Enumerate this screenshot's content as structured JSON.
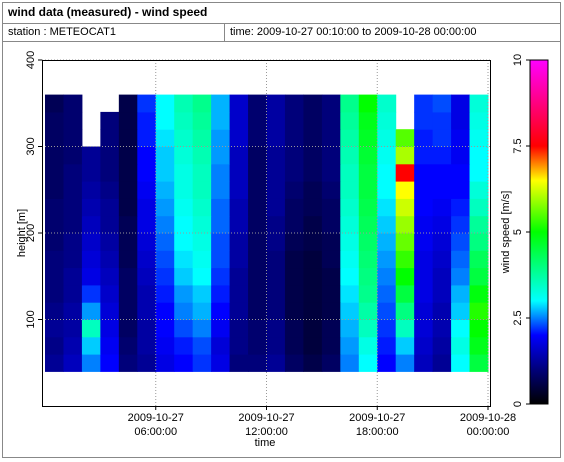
{
  "chart_data": {
    "type": "heatmap",
    "title": "wind data (measured) - wind speed",
    "station": "station : METEOCAT1",
    "period": "time: 2009-10-27 00:10:00 to 2009-10-28 00:00:00",
    "x_label": "time",
    "y_label": "height [m]",
    "colorbar_label": "wind speed [m/s]",
    "xlim": [
      "2009-10-27 00:00:00",
      "2009-10-28 00:00:00"
    ],
    "xticks": [
      "2009-10-27 06:00:00",
      "2009-10-27 12:00:00",
      "2009-10-27 18:00:00",
      "2009-10-28 00:00:00"
    ],
    "ylim": [
      0,
      400
    ],
    "yticks": [
      100,
      200,
      300,
      400
    ],
    "zlim": [
      0,
      10
    ],
    "zticks": [
      0,
      2.5,
      5,
      7.5,
      10
    ],
    "grid": true,
    "colormap": [
      {
        "value": 0,
        "color": "#000000"
      },
      {
        "value": 1,
        "color": "#00007a"
      },
      {
        "value": 2,
        "color": "#0000ff"
      },
      {
        "value": 3,
        "color": "#00ffff"
      },
      {
        "value": 5,
        "color": "#00ff00"
      },
      {
        "value": 6.5,
        "color": "#ffff00"
      },
      {
        "value": 7.5,
        "color": "#ff0000"
      },
      {
        "value": 10,
        "color": "#ff00ff"
      }
    ],
    "xbins": [
      "2009-10-27 00:00:00",
      "2009-10-27 01:00:00",
      "2009-10-27 02:00:00",
      "2009-10-27 03:00:00",
      "2009-10-27 04:00:00",
      "2009-10-27 05:00:00",
      "2009-10-27 06:00:00",
      "2009-10-27 07:00:00",
      "2009-10-27 08:00:00",
      "2009-10-27 09:00:00",
      "2009-10-27 10:00:00",
      "2009-10-27 11:00:00",
      "2009-10-27 12:00:00",
      "2009-10-27 13:00:00",
      "2009-10-27 14:00:00",
      "2009-10-27 15:00:00",
      "2009-10-27 16:00:00",
      "2009-10-27 17:00:00",
      "2009-10-27 18:00:00",
      "2009-10-27 19:00:00",
      "2009-10-27 20:00:00",
      "2009-10-27 21:00:00",
      "2009-10-27 22:00:00",
      "2009-10-27 23:00:00",
      "2009-10-28 00:00:00"
    ],
    "ybins": [
      40,
      60,
      80,
      100,
      120,
      140,
      160,
      180,
      200,
      220,
      240,
      260,
      280,
      300,
      320,
      340,
      360
    ],
    "values": [
      [
        1.2,
        1.5,
        2.5,
        2.0,
        1.0,
        1.2,
        1.8,
        2.0,
        2.2,
        1.8,
        1.0,
        1.0,
        1.2,
        0.8,
        0.6,
        0.8,
        2.5,
        3.0,
        2.0,
        2.5,
        1.5,
        1.2,
        3.0,
        4.5
      ],
      [
        1.1,
        1.4,
        2.8,
        1.9,
        0.9,
        1.3,
        1.9,
        2.1,
        2.3,
        1.7,
        1.1,
        0.9,
        1.1,
        0.7,
        0.5,
        0.7,
        2.6,
        3.2,
        2.1,
        2.8,
        1.6,
        1.3,
        3.2,
        4.8
      ],
      [
        1.2,
        1.3,
        3.5,
        1.8,
        0.8,
        1.3,
        2.0,
        2.3,
        2.5,
        1.9,
        1.1,
        0.9,
        1.1,
        0.7,
        0.5,
        0.7,
        2.7,
        3.5,
        2.2,
        3.5,
        1.7,
        1.4,
        3.0,
        5.0
      ],
      [
        1.1,
        1.3,
        2.6,
        1.7,
        0.8,
        1.4,
        2.0,
        2.5,
        2.7,
        2.0,
        1.2,
        0.8,
        1.0,
        0.6,
        0.5,
        0.6,
        2.8,
        3.7,
        2.3,
        4.0,
        1.7,
        1.4,
        2.8,
        5.2
      ],
      [
        1.0,
        1.2,
        2.2,
        1.6,
        0.8,
        1.4,
        2.1,
        2.6,
        2.8,
        2.1,
        1.2,
        0.8,
        1.0,
        0.6,
        0.5,
        0.6,
        2.9,
        3.9,
        2.4,
        4.5,
        1.8,
        1.5,
        2.7,
        4.9
      ],
      [
        1.0,
        1.2,
        1.8,
        1.5,
        0.8,
        1.5,
        2.2,
        2.8,
        3.0,
        2.2,
        1.2,
        0.8,
        1.0,
        0.6,
        0.5,
        0.6,
        3.0,
        4.0,
        2.5,
        5.0,
        1.8,
        1.5,
        2.5,
        4.5
      ],
      [
        1.0,
        1.1,
        1.7,
        1.4,
        0.7,
        1.6,
        2.3,
        2.9,
        3.1,
        2.3,
        1.3,
        0.8,
        1.0,
        0.6,
        0.5,
        0.7,
        3.1,
        4.1,
        2.6,
        5.3,
        1.8,
        1.6,
        2.4,
        4.3
      ],
      [
        0.9,
        1.1,
        1.6,
        1.3,
        0.7,
        1.7,
        2.4,
        3.0,
        3.2,
        2.3,
        1.3,
        0.8,
        1.1,
        0.7,
        0.6,
        0.7,
        3.2,
        4.2,
        2.7,
        5.6,
        1.9,
        1.7,
        2.3,
        4.0
      ],
      [
        0.9,
        1.0,
        1.5,
        1.2,
        0.7,
        1.8,
        2.5,
        3.0,
        3.3,
        2.4,
        1.4,
        0.8,
        1.1,
        0.8,
        0.6,
        0.8,
        3.3,
        4.3,
        2.8,
        5.9,
        1.9,
        1.8,
        2.2,
        3.8
      ],
      [
        0.9,
        1.0,
        1.4,
        1.2,
        0.6,
        1.8,
        2.6,
        3.1,
        3.4,
        2.4,
        1.4,
        0.8,
        1.2,
        0.8,
        0.7,
        0.8,
        3.4,
        4.4,
        2.9,
        6.2,
        2.0,
        1.9,
        2.1,
        3.5
      ],
      [
        0.8,
        1.0,
        1.3,
        1.1,
        0.6,
        1.9,
        2.7,
        3.2,
        3.5,
        2.5,
        1.5,
        0.8,
        1.2,
        0.9,
        0.7,
        0.9,
        3.5,
        4.5,
        3.0,
        6.5,
        2.0,
        2.0,
        2.0,
        3.3
      ],
      [
        0.8,
        1.0,
        1.2,
        1.0,
        0.6,
        2.0,
        2.8,
        3.2,
        3.5,
        2.5,
        1.5,
        0.8,
        1.2,
        1.0,
        0.8,
        1.0,
        3.5,
        4.5,
        3.0,
        7.5,
        2.0,
        2.0,
        2.0,
        3.0
      ],
      [
        0.8,
        0.9,
        1.2,
        1.0,
        0.6,
        2.0,
        2.8,
        3.3,
        3.6,
        2.6,
        1.5,
        0.8,
        1.2,
        1.0,
        0.8,
        1.0,
        3.6,
        4.6,
        3.1,
        6.0,
        2.1,
        2.1,
        1.9,
        3.0
      ],
      [
        0.8,
        0.9,
        null,
        1.0,
        0.6,
        2.1,
        2.9,
        3.4,
        3.7,
        2.6,
        1.6,
        0.9,
        1.3,
        1.0,
        0.8,
        1.0,
        3.7,
        4.7,
        3.2,
        5.5,
        2.1,
        2.2,
        1.9,
        3.1
      ],
      [
        0.8,
        0.9,
        null,
        1.0,
        0.6,
        2.1,
        3.0,
        3.5,
        3.8,
        2.7,
        1.6,
        0.9,
        1.3,
        1.0,
        0.8,
        1.0,
        3.8,
        4.8,
        3.3,
        null,
        2.2,
        2.2,
        1.8,
        3.2
      ],
      [
        0.7,
        0.9,
        null,
        null,
        0.6,
        2.2,
        3.0,
        3.6,
        3.9,
        2.7,
        1.6,
        0.9,
        1.3,
        1.0,
        0.8,
        1.0,
        3.9,
        5.0,
        3.4,
        null,
        2.2,
        2.3,
        1.8,
        3.3
      ]
    ]
  }
}
